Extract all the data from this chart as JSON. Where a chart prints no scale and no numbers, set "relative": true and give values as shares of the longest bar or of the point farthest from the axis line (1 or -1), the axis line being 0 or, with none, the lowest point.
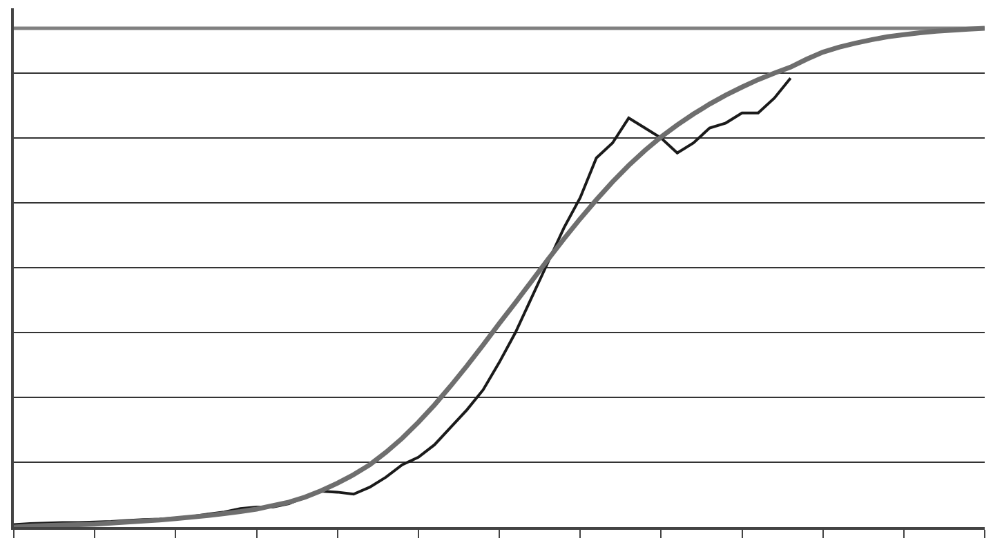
{
  "chart_data": {
    "type": "line",
    "relative": true,
    "grid": "y",
    "marker": "none",
    "line_style": "solid",
    "categories": [
      null,
      null,
      null,
      null,
      null,
      null,
      null,
      null,
      null,
      null,
      null,
      null,
      null,
      null,
      null,
      null,
      null,
      null,
      null,
      null,
      null,
      null,
      null,
      null,
      null,
      null,
      null,
      null,
      null,
      null,
      null,
      null,
      null,
      null,
      null,
      null,
      null,
      null,
      null,
      null,
      null,
      null,
      null,
      null,
      null,
      null,
      null,
      null,
      null,
      null,
      null,
      null,
      null,
      null,
      null,
      null,
      null,
      null,
      null,
      null,
      null
    ],
    "series": [
      {
        "color": "#808080",
        "values": [
          1,
          1,
          1,
          1,
          1,
          1,
          1,
          1,
          1,
          1,
          1,
          1,
          1,
          1,
          1,
          1,
          1,
          1,
          1,
          1,
          1,
          1,
          1,
          1,
          1,
          1,
          1,
          1,
          1,
          1,
          1,
          1,
          1,
          1,
          1,
          1,
          1,
          1,
          1,
          1,
          1,
          1,
          1,
          1,
          1,
          1,
          1,
          1,
          1,
          1,
          1,
          1,
          1,
          1,
          1,
          1,
          1,
          1,
          1,
          1,
          1
        ]
      },
      {
        "color": "#1a1a1a",
        "values": [
          0.005,
          0.007,
          0.008,
          0.009,
          0.009,
          0.01,
          0.011,
          0.013,
          0.015,
          0.016,
          0.018,
          0.021,
          0.026,
          0.03,
          0.037,
          0.04,
          0.04,
          0.047,
          0.06,
          0.072,
          0.07,
          0.066,
          0.08,
          0.1,
          0.125,
          0.14,
          0.165,
          0.2,
          0.235,
          0.275,
          0.33,
          0.39,
          0.46,
          0.53,
          0.6,
          0.66,
          0.74,
          0.77,
          0.82,
          0.8,
          0.78,
          0.75,
          0.77,
          0.8,
          0.81,
          0.83,
          0.83,
          0.86,
          0.9,
          null,
          null,
          null,
          null,
          null,
          null,
          null,
          null,
          null,
          null,
          null,
          null
        ]
      },
      {
        "color": "#6e6e6e",
        "values": [
          0.0,
          0.002,
          0.003,
          0.004,
          0.005,
          0.006,
          0.008,
          0.01,
          0.012,
          0.014,
          0.017,
          0.02,
          0.023,
          0.027,
          0.031,
          0.036,
          0.043,
          0.05,
          0.06,
          0.073,
          0.088,
          0.105,
          0.125,
          0.15,
          0.178,
          0.21,
          0.245,
          0.283,
          0.323,
          0.365,
          0.408,
          0.45,
          0.493,
          0.536,
          0.578,
          0.618,
          0.656,
          0.692,
          0.725,
          0.755,
          0.782,
          0.806,
          0.828,
          0.848,
          0.866,
          0.882,
          0.897,
          0.91,
          0.922,
          0.938,
          0.952,
          0.962,
          0.97,
          0.977,
          0.983,
          0.987,
          0.991,
          0.994,
          0.996,
          0.998,
          1.0
        ]
      }
    ]
  }
}
